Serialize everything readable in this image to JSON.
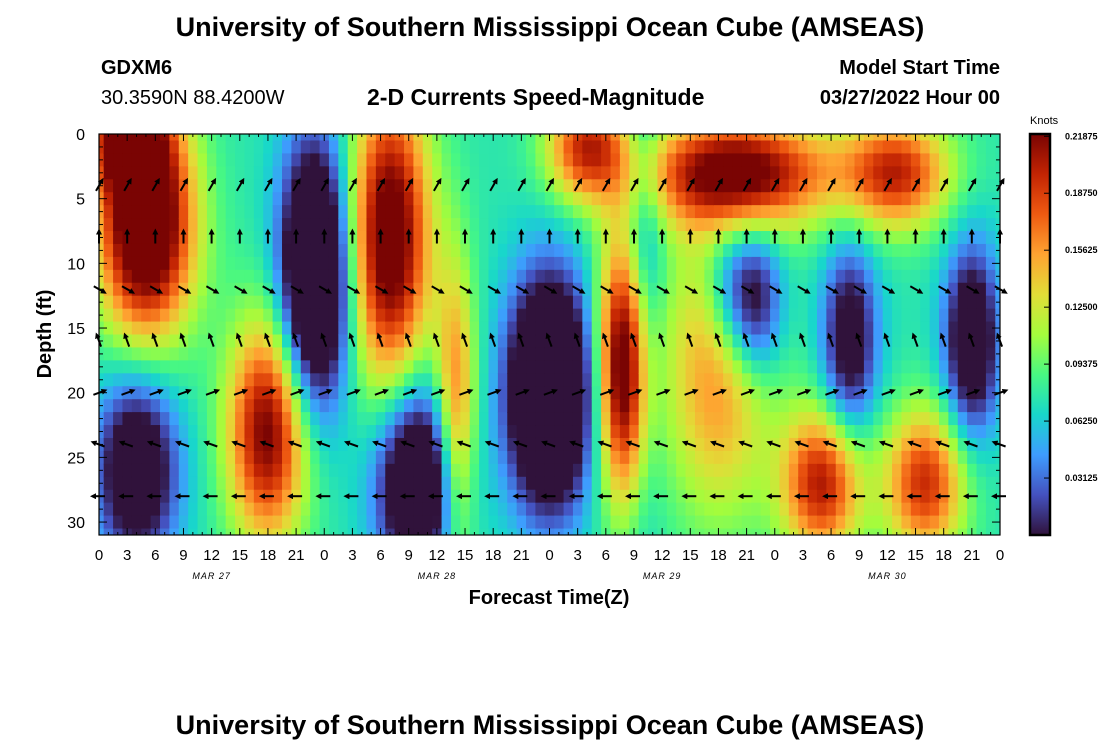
{
  "header": {
    "title": "University of Southern Mississippi Ocean Cube (AMSEAS)",
    "station": "GDXM6",
    "location": "30.3590N  88.4200W",
    "subtitle": "2-D Currents Speed-Magnitude",
    "model_start_label": "Model Start Time",
    "model_start_value": "03/27/2022 Hour 00"
  },
  "footer": {
    "title": "University of Southern Mississippi Ocean Cube (AMSEAS)"
  },
  "chart_data": {
    "type": "heatmap",
    "title": "2-D Currents Speed-Magnitude",
    "xlabel": "Forecast Time(Z)",
    "ylabel": "Depth (ft)",
    "xlim": [
      0,
      96
    ],
    "ylim": [
      0,
      31
    ],
    "x_tick_labels": [
      "0",
      "3",
      "6",
      "9",
      "12",
      "15",
      "18",
      "21",
      "0",
      "3",
      "6",
      "9",
      "12",
      "15",
      "18",
      "21",
      "0",
      "3",
      "6",
      "9",
      "12",
      "15",
      "18",
      "21",
      "0",
      "3",
      "6",
      "9",
      "12",
      "15",
      "18",
      "21",
      "0"
    ],
    "date_labels": [
      {
        "label": "MAR 27",
        "hour": 12
      },
      {
        "label": "MAR 28",
        "hour": 36
      },
      {
        "label": "MAR 29",
        "hour": 60
      },
      {
        "label": "MAR 30",
        "hour": 84
      }
    ],
    "y_ticks": [
      0,
      5,
      10,
      15,
      20,
      25,
      30
    ],
    "colorbar": {
      "label": "Knots",
      "ticks": [
        "0.21875",
        "0.18750",
        "0.15625",
        "0.12500",
        "0.09375",
        "0.06250",
        "0.03125"
      ],
      "min": 0,
      "max": 0.22
    },
    "vector_depths": [
      4,
      8,
      12,
      16,
      20,
      24,
      28
    ],
    "vector_hours_step": 3,
    "speed_field_description": "estimated",
    "speed_blobs": [
      {
        "t": 5,
        "d": 7,
        "st": 3.5,
        "sd": 6,
        "v": 0.2
      },
      {
        "t": 3,
        "d": 0,
        "st": 3,
        "sd": 3,
        "v": 0.13
      },
      {
        "t": 23,
        "d": 11,
        "st": 2.5,
        "sd": 7,
        "v": -0.18
      },
      {
        "t": 31,
        "d": 8,
        "st": 3,
        "sd": 8,
        "v": 0.17
      },
      {
        "t": 18,
        "d": 23,
        "st": 3,
        "sd": 6,
        "v": 0.15
      },
      {
        "t": 34,
        "d": 27,
        "st": 3,
        "sd": 5,
        "v": -0.15
      },
      {
        "t": 4,
        "d": 26,
        "st": 3,
        "sd": 5,
        "v": -0.12
      },
      {
        "t": 38,
        "d": 22,
        "st": 1.5,
        "sd": 8,
        "v": 0.1
      },
      {
        "t": 48,
        "d": 20,
        "st": 3,
        "sd": 6,
        "v": -0.2
      },
      {
        "t": 56,
        "d": 18,
        "st": 2,
        "sd": 7,
        "v": 0.18
      },
      {
        "t": 52,
        "d": 1,
        "st": 3,
        "sd": 3,
        "v": 0.12
      },
      {
        "t": 58,
        "d": 12,
        "st": 1.5,
        "sd": 12,
        "v": -0.06
      },
      {
        "t": 68,
        "d": 3,
        "st": 7,
        "sd": 3,
        "v": 0.16
      },
      {
        "t": 66,
        "d": 18,
        "st": 4,
        "sd": 8,
        "v": 0.09
      },
      {
        "t": 77,
        "d": 27,
        "st": 3,
        "sd": 4,
        "v": 0.13
      },
      {
        "t": 88,
        "d": 27,
        "st": 3,
        "sd": 4,
        "v": 0.12
      },
      {
        "t": 67,
        "d": 12,
        "st": 2,
        "sd": 4,
        "v": -0.06
      },
      {
        "t": 70,
        "d": 13,
        "st": 2,
        "sd": 4,
        "v": -0.1
      },
      {
        "t": 80,
        "d": 16,
        "st": 2,
        "sd": 5,
        "v": -0.1
      },
      {
        "t": 93,
        "d": 16,
        "st": 2,
        "sd": 5,
        "v": -0.12
      },
      {
        "t": 85,
        "d": 3,
        "st": 4,
        "sd": 3,
        "v": 0.12
      }
    ]
  }
}
